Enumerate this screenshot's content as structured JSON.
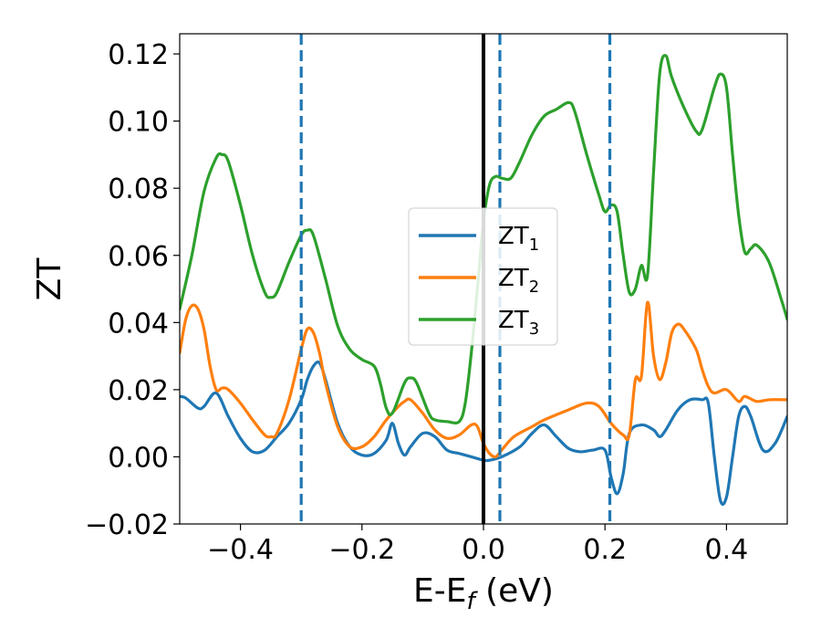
{
  "chart_data": {
    "type": "line",
    "xlabel": "E-E",
    "xlabel_sub": "f",
    "xlabel_unit": " (eV)",
    "ylabel": "ZT",
    "xlim": [
      -0.5,
      0.5
    ],
    "ylim": [
      -0.02,
      0.126
    ],
    "x_ticks": [
      -0.4,
      -0.2,
      0.0,
      0.2,
      0.4
    ],
    "x_tick_labels": [
      "−0.4",
      "−0.2",
      "0.0",
      "0.2",
      "0.4"
    ],
    "y_ticks": [
      -0.02,
      0.0,
      0.02,
      0.04,
      0.06,
      0.08,
      0.1,
      0.12
    ],
    "y_tick_labels": [
      "−0.02",
      "0.00",
      "0.02",
      "0.04",
      "0.06",
      "0.08",
      "0.10",
      "0.12"
    ],
    "grid": false,
    "legend_position": "center",
    "vertical_lines": [
      {
        "x": 0.0,
        "style": "solid",
        "color": "#000000"
      },
      {
        "x": -0.3,
        "style": "dashed",
        "color": "#1f77b4"
      },
      {
        "x": 0.027,
        "style": "dashed",
        "color": "#1f77b4"
      },
      {
        "x": 0.208,
        "style": "dashed",
        "color": "#1f77b4"
      }
    ],
    "series": [
      {
        "name": "ZT",
        "name_sub": "1",
        "color": "#1f77b4",
        "points": [
          [
            -0.5,
            0.018
          ],
          [
            -0.49,
            0.0175
          ],
          [
            -0.47,
            0.0145
          ],
          [
            -0.46,
            0.015
          ],
          [
            -0.44,
            0.019
          ],
          [
            -0.42,
            0.012
          ],
          [
            -0.4,
            0.0055
          ],
          [
            -0.38,
            0.0015
          ],
          [
            -0.36,
            0.002
          ],
          [
            -0.34,
            0.006
          ],
          [
            -0.32,
            0.01
          ],
          [
            -0.3,
            0.017
          ],
          [
            -0.29,
            0.023
          ],
          [
            -0.28,
            0.027
          ],
          [
            -0.27,
            0.028
          ],
          [
            -0.26,
            0.023
          ],
          [
            -0.24,
            0.01
          ],
          [
            -0.22,
            0.003
          ],
          [
            -0.2,
            0.0005
          ],
          [
            -0.18,
            0.001
          ],
          [
            -0.16,
            0.005
          ],
          [
            -0.15,
            0.01
          ],
          [
            -0.14,
            0.004
          ],
          [
            -0.13,
            0.0005
          ],
          [
            -0.12,
            0.003
          ],
          [
            -0.1,
            0.007
          ],
          [
            -0.08,
            0.006
          ],
          [
            -0.06,
            0.002
          ],
          [
            -0.04,
            0.001
          ],
          [
            -0.02,
            0.0
          ],
          [
            0.0,
            -0.001
          ],
          [
            0.01,
            -0.001
          ],
          [
            0.03,
            0.0
          ],
          [
            0.06,
            0.003
          ],
          [
            0.08,
            0.007
          ],
          [
            0.1,
            0.0095
          ],
          [
            0.12,
            0.006
          ],
          [
            0.14,
            0.0025
          ],
          [
            0.16,
            0.0015
          ],
          [
            0.18,
            0.002
          ],
          [
            0.2,
            0.002
          ],
          [
            0.21,
            -0.006
          ],
          [
            0.22,
            -0.011
          ],
          [
            0.23,
            -0.005
          ],
          [
            0.24,
            0.007
          ],
          [
            0.26,
            0.0095
          ],
          [
            0.28,
            0.008
          ],
          [
            0.29,
            0.006
          ],
          [
            0.3,
            0.008
          ],
          [
            0.32,
            0.014
          ],
          [
            0.34,
            0.017
          ],
          [
            0.36,
            0.017
          ],
          [
            0.37,
            0.016
          ],
          [
            0.38,
            0.0
          ],
          [
            0.39,
            -0.013
          ],
          [
            0.4,
            -0.012
          ],
          [
            0.41,
            0.0
          ],
          [
            0.42,
            0.012
          ],
          [
            0.43,
            0.015
          ],
          [
            0.44,
            0.012
          ],
          [
            0.46,
            0.002
          ],
          [
            0.48,
            0.004
          ],
          [
            0.5,
            0.012
          ]
        ]
      },
      {
        "name": "ZT",
        "name_sub": "2",
        "color": "#ff7f0e",
        "points": [
          [
            -0.5,
            0.031
          ],
          [
            -0.49,
            0.041
          ],
          [
            -0.48,
            0.045
          ],
          [
            -0.47,
            0.044
          ],
          [
            -0.46,
            0.038
          ],
          [
            -0.45,
            0.027
          ],
          [
            -0.44,
            0.02
          ],
          [
            -0.43,
            0.0205
          ],
          [
            -0.42,
            0.02
          ],
          [
            -0.4,
            0.016
          ],
          [
            -0.38,
            0.011
          ],
          [
            -0.36,
            0.0065
          ],
          [
            -0.35,
            0.006
          ],
          [
            -0.34,
            0.007
          ],
          [
            -0.32,
            0.017
          ],
          [
            -0.3,
            0.032
          ],
          [
            -0.29,
            0.038
          ],
          [
            -0.28,
            0.037
          ],
          [
            -0.27,
            0.031
          ],
          [
            -0.26,
            0.022
          ],
          [
            -0.24,
            0.009
          ],
          [
            -0.22,
            0.003
          ],
          [
            -0.2,
            0.003
          ],
          [
            -0.18,
            0.006
          ],
          [
            -0.16,
            0.011
          ],
          [
            -0.14,
            0.015
          ],
          [
            -0.13,
            0.0165
          ],
          [
            -0.12,
            0.017
          ],
          [
            -0.1,
            0.013
          ],
          [
            -0.08,
            0.008
          ],
          [
            -0.06,
            0.0055
          ],
          [
            -0.04,
            0.0065
          ],
          [
            -0.02,
            0.0095
          ],
          [
            -0.01,
            0.009
          ],
          [
            0.0,
            0.004
          ],
          [
            0.01,
            0.001
          ],
          [
            0.02,
            0.0
          ],
          [
            0.03,
            0.002
          ],
          [
            0.05,
            0.006
          ],
          [
            0.08,
            0.009
          ],
          [
            0.1,
            0.011
          ],
          [
            0.14,
            0.014
          ],
          [
            0.17,
            0.016
          ],
          [
            0.19,
            0.015
          ],
          [
            0.21,
            0.01
          ],
          [
            0.23,
            0.0065
          ],
          [
            0.24,
            0.0065
          ],
          [
            0.25,
            0.023
          ],
          [
            0.26,
            0.024
          ],
          [
            0.27,
            0.046
          ],
          [
            0.28,
            0.03
          ],
          [
            0.29,
            0.023
          ],
          [
            0.3,
            0.028
          ],
          [
            0.31,
            0.037
          ],
          [
            0.32,
            0.0395
          ],
          [
            0.33,
            0.038
          ],
          [
            0.35,
            0.032
          ],
          [
            0.36,
            0.026
          ],
          [
            0.37,
            0.021
          ],
          [
            0.38,
            0.019
          ],
          [
            0.4,
            0.02
          ],
          [
            0.42,
            0.0165
          ],
          [
            0.43,
            0.018
          ],
          [
            0.45,
            0.0165
          ],
          [
            0.47,
            0.017
          ],
          [
            0.5,
            0.017
          ]
        ]
      },
      {
        "name": "ZT",
        "name_sub": "3",
        "color": "#2ca02c",
        "points": [
          [
            -0.5,
            0.044
          ],
          [
            -0.48,
            0.06
          ],
          [
            -0.46,
            0.079
          ],
          [
            -0.44,
            0.089
          ],
          [
            -0.43,
            0.09
          ],
          [
            -0.42,
            0.088
          ],
          [
            -0.4,
            0.075
          ],
          [
            -0.38,
            0.06
          ],
          [
            -0.36,
            0.049
          ],
          [
            -0.35,
            0.0475
          ],
          [
            -0.34,
            0.049
          ],
          [
            -0.32,
            0.058
          ],
          [
            -0.3,
            0.066
          ],
          [
            -0.29,
            0.0675
          ],
          [
            -0.28,
            0.066
          ],
          [
            -0.26,
            0.053
          ],
          [
            -0.24,
            0.039
          ],
          [
            -0.22,
            0.032
          ],
          [
            -0.2,
            0.029
          ],
          [
            -0.18,
            0.027
          ],
          [
            -0.17,
            0.022
          ],
          [
            -0.16,
            0.0145
          ],
          [
            -0.15,
            0.013
          ],
          [
            -0.13,
            0.022
          ],
          [
            -0.12,
            0.0235
          ],
          [
            -0.11,
            0.022
          ],
          [
            -0.09,
            0.013
          ],
          [
            -0.08,
            0.011
          ],
          [
            -0.06,
            0.0105
          ],
          [
            -0.04,
            0.0105
          ],
          [
            -0.03,
            0.016
          ],
          [
            -0.02,
            0.031
          ],
          [
            -0.01,
            0.05
          ],
          [
            0.0,
            0.07
          ],
          [
            0.01,
            0.081
          ],
          [
            0.02,
            0.0835
          ],
          [
            0.03,
            0.083
          ],
          [
            0.045,
            0.083
          ],
          [
            0.06,
            0.088
          ],
          [
            0.08,
            0.096
          ],
          [
            0.1,
            0.1015
          ],
          [
            0.12,
            0.1035
          ],
          [
            0.14,
            0.1055
          ],
          [
            0.15,
            0.103
          ],
          [
            0.17,
            0.09
          ],
          [
            0.19,
            0.078
          ],
          [
            0.2,
            0.073
          ],
          [
            0.21,
            0.075
          ],
          [
            0.22,
            0.073
          ],
          [
            0.23,
            0.06
          ],
          [
            0.24,
            0.049
          ],
          [
            0.25,
            0.05
          ],
          [
            0.26,
            0.057
          ],
          [
            0.27,
            0.054
          ],
          [
            0.28,
            0.085
          ],
          [
            0.29,
            0.114
          ],
          [
            0.3,
            0.1195
          ],
          [
            0.31,
            0.113
          ],
          [
            0.33,
            0.104
          ],
          [
            0.35,
            0.097
          ],
          [
            0.36,
            0.0975
          ],
          [
            0.38,
            0.11
          ],
          [
            0.39,
            0.114
          ],
          [
            0.4,
            0.11
          ],
          [
            0.41,
            0.09
          ],
          [
            0.42,
            0.072
          ],
          [
            0.43,
            0.061
          ],
          [
            0.44,
            0.062
          ],
          [
            0.45,
            0.063
          ],
          [
            0.47,
            0.058
          ],
          [
            0.49,
            0.047
          ],
          [
            0.5,
            0.041
          ]
        ]
      }
    ]
  }
}
